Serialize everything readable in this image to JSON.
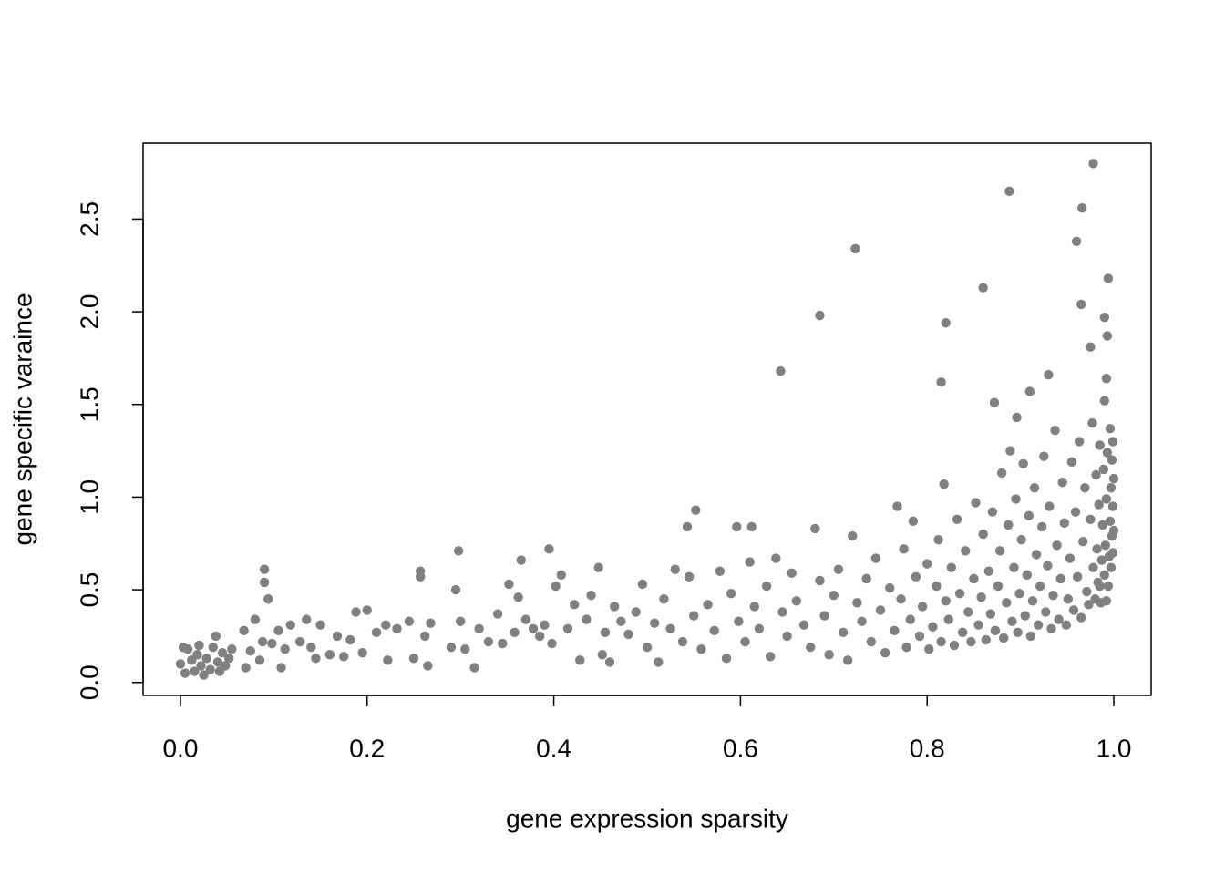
{
  "chart_data": {
    "type": "scatter",
    "x_label": "gene expression sparsity",
    "y_label": "gene specific varaince",
    "color": "#808080",
    "xlim": [
      -0.04,
      1.04
    ],
    "ylim": [
      -0.07,
      2.91
    ],
    "xticks": [
      {
        "value": 0,
        "label": "0.0"
      },
      0.2,
      0.4,
      0.6,
      0.8,
      {
        "value": 1,
        "label": "1.0"
      }
    ],
    "yticks": [
      {
        "value": 0,
        "label": "0.0"
      },
      0.5,
      {
        "value": 1,
        "label": "1.0"
      },
      1.5,
      {
        "value": 2,
        "label": "2.0"
      },
      2.5
    ],
    "x": [
      0.978,
      0.888,
      0.966,
      0.723,
      0.96,
      0.994,
      0.86,
      0.965,
      0.685,
      0.82,
      0.99,
      0.993,
      0.975,
      0.643,
      0.815,
      0.93,
      0.91,
      0.992,
      0.872,
      0.896,
      0.99,
      0.552,
      0.543,
      0.596,
      0.612,
      0.395,
      0.298,
      0.365,
      0.09,
      0.257,
      0.09,
      0.257,
      0.0,
      0.005,
      0.008,
      0.012,
      0.015,
      0.018,
      0.022,
      0.025,
      0.028,
      0.032,
      0.035,
      0.038,
      0.04,
      0.042,
      0.045,
      0.048,
      0.052,
      0.055,
      0.003,
      0.02,
      0.068,
      0.07,
      0.075,
      0.08,
      0.085,
      0.088,
      0.094,
      0.098,
      0.105,
      0.108,
      0.112,
      0.118,
      0.128,
      0.135,
      0.14,
      0.145,
      0.15,
      0.16,
      0.168,
      0.175,
      0.182,
      0.188,
      0.195,
      0.2,
      0.21,
      0.22,
      0.222,
      0.232,
      0.245,
      0.25,
      0.262,
      0.265,
      0.268,
      0.29,
      0.295,
      0.3,
      0.305,
      0.315,
      0.32,
      0.33,
      0.34,
      0.345,
      0.352,
      0.358,
      0.362,
      0.37,
      0.378,
      0.385,
      0.39,
      0.398,
      0.402,
      0.408,
      0.415,
      0.422,
      0.428,
      0.435,
      0.44,
      0.448,
      0.452,
      0.455,
      0.46,
      0.465,
      0.472,
      0.48,
      0.488,
      0.495,
      0.5,
      0.508,
      0.512,
      0.518,
      0.525,
      0.53,
      0.538,
      0.545,
      0.55,
      0.558,
      0.565,
      0.572,
      0.578,
      0.585,
      0.59,
      0.598,
      0.605,
      0.61,
      0.615,
      0.62,
      0.628,
      0.632,
      0.638,
      0.645,
      0.65,
      0.655,
      0.66,
      0.668,
      0.675,
      0.68,
      0.685,
      0.69,
      0.695,
      0.7,
      0.705,
      0.71,
      0.715,
      0.72,
      0.725,
      0.73,
      0.735,
      0.74,
      0.745,
      0.75,
      0.755,
      0.76,
      0.765,
      0.768,
      0.772,
      0.775,
      0.778,
      0.782,
      0.785,
      0.788,
      0.792,
      0.795,
      0.8,
      0.802,
      0.806,
      0.81,
      0.812,
      0.815,
      0.818,
      0.82,
      0.823,
      0.826,
      0.829,
      0.832,
      0.835,
      0.838,
      0.841,
      0.844,
      0.847,
      0.85,
      0.852,
      0.855,
      0.858,
      0.86,
      0.863,
      0.866,
      0.868,
      0.87,
      0.873,
      0.876,
      0.878,
      0.88,
      0.882,
      0.885,
      0.887,
      0.889,
      0.891,
      0.893,
      0.895,
      0.897,
      0.899,
      0.901,
      0.903,
      0.905,
      0.907,
      0.909,
      0.911,
      0.913,
      0.915,
      0.917,
      0.919,
      0.921,
      0.923,
      0.925,
      0.927,
      0.929,
      0.931,
      0.933,
      0.935,
      0.937,
      0.939,
      0.941,
      0.943,
      0.945,
      0.947,
      0.949,
      0.951,
      0.953,
      0.955,
      0.957,
      0.959,
      0.961,
      0.963,
      0.965,
      0.967,
      0.969,
      0.971,
      0.973,
      0.975,
      0.977,
      0.978,
      0.98,
      0.981,
      0.982,
      0.983,
      0.984,
      0.985,
      0.986,
      0.987,
      0.988,
      0.989,
      0.99,
      0.991,
      0.992,
      0.993,
      0.994,
      0.995,
      0.996,
      0.996,
      0.997,
      0.997,
      0.998,
      0.998,
      0.999,
      0.999,
      0.999,
      1.0,
      1.0,
      0.992,
      0.985
    ],
    "values": [
      2.8,
      2.65,
      2.56,
      2.34,
      2.38,
      2.18,
      2.13,
      2.04,
      1.98,
      1.94,
      1.97,
      1.87,
      1.81,
      1.68,
      1.62,
      1.66,
      1.57,
      1.64,
      1.51,
      1.43,
      1.52,
      0.93,
      0.84,
      0.84,
      0.84,
      0.72,
      0.71,
      0.66,
      0.61,
      0.6,
      0.54,
      0.57,
      0.1,
      0.05,
      0.18,
      0.12,
      0.06,
      0.15,
      0.09,
      0.04,
      0.13,
      0.07,
      0.19,
      0.25,
      0.11,
      0.06,
      0.16,
      0.09,
      0.13,
      0.18,
      0.19,
      0.2,
      0.28,
      0.08,
      0.17,
      0.34,
      0.12,
      0.22,
      0.45,
      0.21,
      0.28,
      0.08,
      0.18,
      0.31,
      0.22,
      0.34,
      0.19,
      0.13,
      0.31,
      0.15,
      0.25,
      0.14,
      0.23,
      0.38,
      0.16,
      0.39,
      0.27,
      0.31,
      0.12,
      0.29,
      0.33,
      0.13,
      0.25,
      0.09,
      0.32,
      0.19,
      0.5,
      0.33,
      0.18,
      0.08,
      0.29,
      0.22,
      0.37,
      0.21,
      0.53,
      0.27,
      0.46,
      0.34,
      0.29,
      0.25,
      0.31,
      0.21,
      0.52,
      0.58,
      0.29,
      0.42,
      0.12,
      0.34,
      0.47,
      0.62,
      0.15,
      0.27,
      0.11,
      0.41,
      0.33,
      0.26,
      0.38,
      0.53,
      0.19,
      0.32,
      0.11,
      0.45,
      0.29,
      0.61,
      0.22,
      0.57,
      0.36,
      0.18,
      0.42,
      0.28,
      0.6,
      0.13,
      0.48,
      0.33,
      0.22,
      0.65,
      0.41,
      0.29,
      0.52,
      0.14,
      0.67,
      0.38,
      0.25,
      0.59,
      0.44,
      0.31,
      0.19,
      0.83,
      0.55,
      0.36,
      0.15,
      0.47,
      0.61,
      0.27,
      0.12,
      0.79,
      0.43,
      0.33,
      0.56,
      0.22,
      0.67,
      0.39,
      0.16,
      0.51,
      0.28,
      0.95,
      0.45,
      0.72,
      0.19,
      0.34,
      0.87,
      0.57,
      0.25,
      0.41,
      0.64,
      0.18,
      0.3,
      0.52,
      0.77,
      0.22,
      1.07,
      0.44,
      0.34,
      0.62,
      0.2,
      0.88,
      0.48,
      0.27,
      0.71,
      0.38,
      0.22,
      0.56,
      0.97,
      0.31,
      0.46,
      0.8,
      0.23,
      0.6,
      0.37,
      0.92,
      0.28,
      0.52,
      0.71,
      1.13,
      0.24,
      0.43,
      0.85,
      1.25,
      0.33,
      0.62,
      0.99,
      0.27,
      0.48,
      0.77,
      1.18,
      0.36,
      0.58,
      0.9,
      0.25,
      0.44,
      1.05,
      0.69,
      0.31,
      0.52,
      0.84,
      1.22,
      0.38,
      0.63,
      0.95,
      0.29,
      0.47,
      1.36,
      0.74,
      0.34,
      0.56,
      1.08,
      0.86,
      0.31,
      0.45,
      0.67,
      1.19,
      0.39,
      0.92,
      0.57,
      1.3,
      0.35,
      0.76,
      1.05,
      0.49,
      0.42,
      0.88,
      1.4,
      0.62,
      0.45,
      1.12,
      0.72,
      0.54,
      0.96,
      1.28,
      0.43,
      0.66,
      0.85,
      1.15,
      0.58,
      0.74,
      0.99,
      1.24,
      0.52,
      0.68,
      0.87,
      1.37,
      0.62,
      1.05,
      0.79,
      1.2,
      0.7,
      0.95,
      1.3,
      0.82,
      1.1,
      0.44,
      0.52
    ]
  }
}
